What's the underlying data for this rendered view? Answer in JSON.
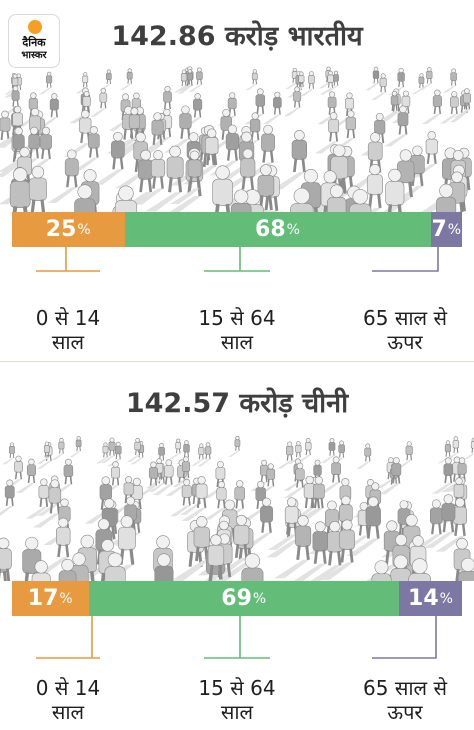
{
  "brand": {
    "line1": "दैनिक",
    "line2": "भास्कर"
  },
  "colors": {
    "young": "#e79a3f",
    "working": "#63bc78",
    "elderly": "#7d78a3"
  },
  "chart_data": [
    {
      "type": "bar",
      "title": "142.86 करोड़ भारतीय",
      "categories": [
        "0 से 14 साल",
        "15 से 64 साल",
        "65 साल से ऊपर"
      ],
      "values": [
        25,
        68,
        7
      ],
      "value_labels": [
        "25",
        "68",
        "7"
      ],
      "unit": "%"
    },
    {
      "type": "bar",
      "title": "142.57 करोड़ चीनी",
      "categories": [
        "0 से 14 साल",
        "15 से 64 साल",
        "65 साल से ऊपर"
      ],
      "values": [
        17,
        69,
        14
      ],
      "value_labels": [
        "17",
        "69",
        "14"
      ],
      "unit": "%"
    }
  ],
  "labels": {
    "young_line1": "0 से 14",
    "young_line2": "साल",
    "working_line1": "15 से 64",
    "working_line2": "साल",
    "elderly_line1": "65 साल से",
    "elderly_line2": "ऊपर"
  }
}
